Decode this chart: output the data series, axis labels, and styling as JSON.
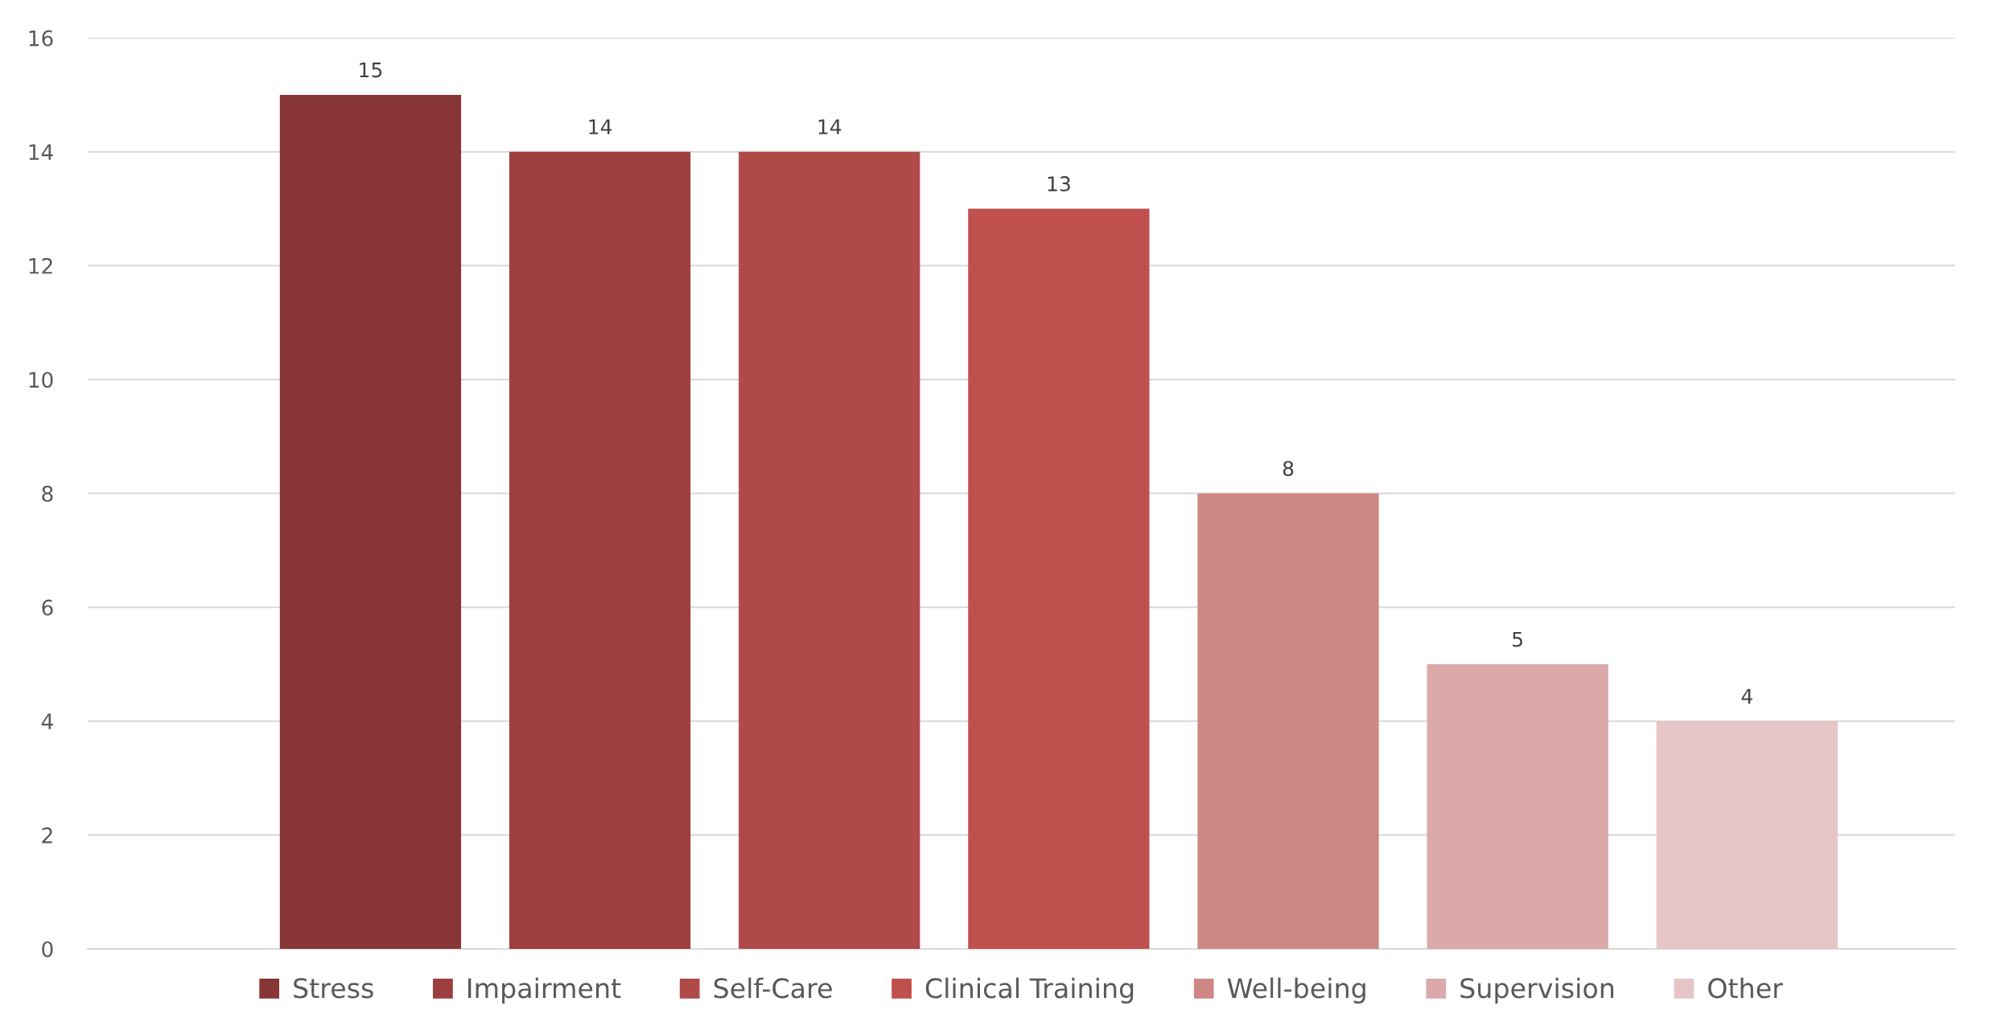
{
  "chart_data": {
    "type": "bar",
    "categories": [
      null
    ],
    "series": [
      {
        "name": "Stress",
        "color": "#873535",
        "values": [
          15
        ]
      },
      {
        "name": "Impairment",
        "color": "#9e3e3e",
        "values": [
          14
        ]
      },
      {
        "name": "Self-Care",
        "color": "#b04a48",
        "values": [
          14
        ]
      },
      {
        "name": "Clinical Training",
        "color": "#c0504d",
        "values": [
          13
        ]
      },
      {
        "name": "Well-being",
        "color": "#cd8785",
        "values": [
          8
        ]
      },
      {
        "name": "Supervision",
        "color": "#dba9a9",
        "values": [
          5
        ]
      },
      {
        "name": "Other",
        "color": "#e5c5c6",
        "values": [
          4
        ]
      }
    ],
    "ylim": [
      0,
      16
    ],
    "yticks": [
      0,
      2,
      4,
      6,
      8,
      10,
      12,
      14,
      16
    ],
    "grid": "y",
    "legend": "bottom",
    "data_labels": true
  }
}
